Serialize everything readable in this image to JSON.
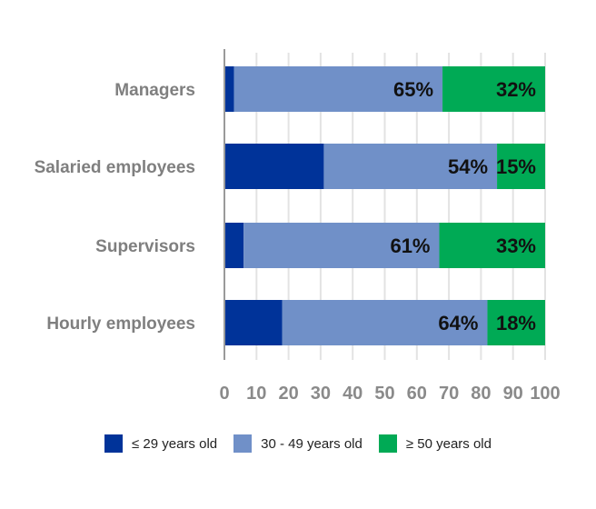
{
  "chart_data": {
    "type": "bar",
    "orientation": "horizontal",
    "stacked": true,
    "categories": [
      "Managers",
      "Salaried employees",
      "Supervisors",
      "Hourly employees"
    ],
    "series": [
      {
        "name": "≤ 29 years old",
        "color": "#003399",
        "values": [
          3,
          31,
          6,
          18
        ],
        "labels": [
          "",
          "",
          "",
          ""
        ]
      },
      {
        "name": "30 - 49 years old",
        "color": "#7090c8",
        "values": [
          65,
          54,
          61,
          64
        ],
        "labels": [
          "65%",
          "54%",
          "61%",
          "64%"
        ]
      },
      {
        "name": "≥ 50 years old",
        "color": "#00aa55",
        "values": [
          32,
          15,
          33,
          18
        ],
        "labels": [
          "32%",
          "15%",
          "33%",
          "18%"
        ]
      }
    ],
    "xlim": [
      0,
      100
    ],
    "xticks": [
      "0",
      "10",
      "20",
      "30",
      "40",
      "50",
      "60",
      "70",
      "80",
      "90",
      "100"
    ],
    "grid": true,
    "legend_position": "bottom"
  }
}
